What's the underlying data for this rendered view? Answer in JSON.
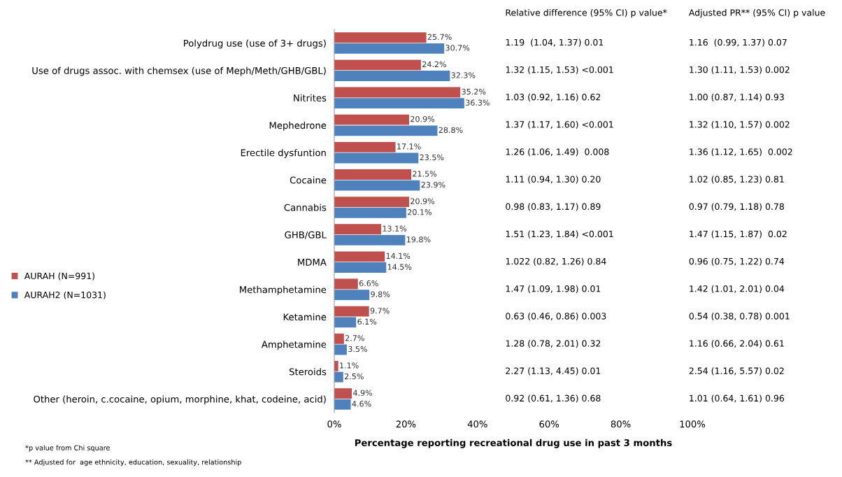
{
  "chart_data": [
    {
      "type": "bar",
      "orientation": "horizontal",
      "xlabel": "Percentage reporting recreational drug use in past 3 months",
      "categories": [
        "Polydrug use (use of 3+ drugs)",
        "Use of drugs assoc. with chemsex (use of Meph/Meth/GHB/GBL)",
        "Nitrites",
        "Mephedrone",
        "Erectile dysfuntion",
        "Cocaine",
        "Cannabis",
        "GHB/GBL",
        "MDMA",
        "Methamphetamine",
        "Ketamine",
        "Amphetamine",
        "Steroids",
        "Other (heroin, c.cocaine, opium, morphine, khat, codeine, acid)"
      ],
      "series": [
        {
          "name": "AURAH (N=991)",
          "color": "#c0504d",
          "values": [
            25.7,
            24.2,
            35.2,
            20.9,
            17.1,
            21.5,
            20.9,
            13.1,
            14.1,
            6.6,
            9.7,
            2.7,
            1.1,
            4.9
          ],
          "value_labels": [
            "25.7%",
            "24.2%",
            "35.2%",
            "20.9%",
            "17.1%",
            "21.5%",
            "20.9%",
            "13.1%",
            "14.1%",
            "6.6%",
            "9.7%",
            "2.7%",
            "1.1%",
            "4.9%"
          ]
        },
        {
          "name": "AURAH2 (N=1031)",
          "color": "#4f81bd",
          "values": [
            30.7,
            32.3,
            36.3,
            28.8,
            23.5,
            23.9,
            20.1,
            19.8,
            14.5,
            9.8,
            6.1,
            3.5,
            2.5,
            4.6
          ],
          "value_labels": [
            "30.7%",
            "32.3%",
            "36.3%",
            "28.8%",
            "23.5%",
            "23.9%",
            "20.1%",
            "19.8%",
            "14.5%",
            "9.8%",
            "6.1%",
            "3.5%",
            "2.5%",
            "4.6%"
          ]
        }
      ],
      "xlim": [
        0,
        100
      ],
      "xticks": [
        {
          "value": 0,
          "label": "0%"
        },
        {
          "value": 20,
          "label": "20%"
        },
        {
          "value": 40,
          "label": "40%"
        },
        {
          "value": 60,
          "label": "60%"
        },
        {
          "value": 80,
          "label": "80%"
        },
        {
          "value": 100,
          "label": "100%"
        }
      ],
      "grid": false,
      "legend": "left",
      "annotations": [
        "*p value from Chi square",
        "** Adjusted for  age ethnicity, education, sexuality, relationship"
      ]
    },
    {
      "type": "other",
      "title": "Relative difference (95% CI) p value*",
      "annotations": [
        "1.19  (1.04, 1.37) 0.01",
        "1.32 (1.15, 1.53) <0.001",
        "1.03 (0.92, 1.16) 0.62",
        "1.37 (1.17, 1.60) <0.001",
        "1.26 (1.06, 1.49)  0.008",
        "1.11 (0.94, 1.30) 0.20",
        "0.98 (0.83, 1.17) 0.89",
        "1.51 (1.23, 1.84) <0.001",
        "1.022 (0.82, 1.26) 0.84",
        "1.47 (1.09, 1.98) 0.01",
        "0.63 (0.46, 0.86) 0.003",
        "1.28 (0.78, 2.01) 0.32",
        "2.27 (1.13, 4.45) 0.01",
        "0.92 (0.61, 1.36) 0.68"
      ]
    },
    {
      "type": "other",
      "title": "Adjusted PR** (95% CI) p value",
      "annotations": [
        "1.16  (0.99, 1.37) 0.07",
        "1.30 (1.11, 1.53) 0.002",
        "1.00 (0.87, 1.14) 0.93",
        "1.32 (1.10, 1.57) 0.002",
        "1.36 (1.12, 1.65)  0.002",
        "1.02 (0.85, 1.23) 0.81",
        "0.97 (0.79, 1.18) 0.78",
        "1.47 (1.15, 1.87)  0.02",
        "0.96 (0.75, 1.22) 0.74",
        "1.42 (1.01, 2.01) 0.04",
        "0.54 (0.38, 0.78) 0.001",
        "1.16 (0.66, 2.04) 0.61",
        "2.54 (1.16, 5.57) 0.02",
        "1.01 (0.64, 1.61) 0.96"
      ]
    }
  ]
}
